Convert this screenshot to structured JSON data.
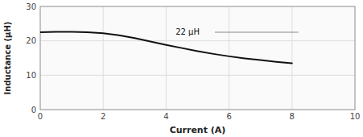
{
  "chart_data": {
    "type": "line",
    "xlabel": "Current (A)",
    "ylabel": "Inductance (μH)",
    "x": [
      0,
      0.5,
      1.0,
      1.5,
      2.0,
      2.5,
      3.0,
      3.5,
      4.0,
      4.5,
      5.0,
      5.5,
      6.0,
      6.5,
      7.0,
      7.5,
      8.0
    ],
    "values": [
      22.5,
      22.6,
      22.6,
      22.5,
      22.2,
      21.6,
      20.8,
      19.8,
      18.8,
      17.9,
      17.0,
      16.2,
      15.5,
      14.9,
      14.4,
      13.9,
      13.5
    ],
    "color": "#111111",
    "xlim": [
      0,
      10
    ],
    "ylim": [
      0,
      30
    ],
    "xticks": [
      0,
      2,
      4,
      6,
      8,
      10
    ],
    "yticks": [
      0,
      10,
      20,
      30
    ],
    "grid": true,
    "annotations": [
      {
        "text": "22 μH",
        "x": 4.3,
        "y": 21.2
      }
    ],
    "reference_lines": [
      {
        "x1": 5.55,
        "x2": 8.2,
        "y": 22.5,
        "color": "#888888"
      }
    ]
  }
}
